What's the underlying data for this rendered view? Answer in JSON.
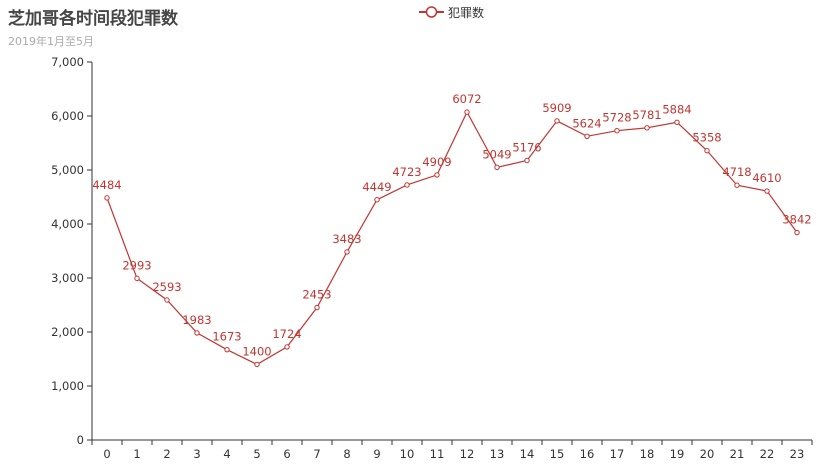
{
  "chart_data": {
    "type": "line",
    "title": "芝加哥各时间段犯罪数",
    "subtitle": "2019年1月至5月",
    "categories": [
      "0",
      "1",
      "2",
      "3",
      "4",
      "5",
      "6",
      "7",
      "8",
      "9",
      "10",
      "11",
      "12",
      "13",
      "14",
      "15",
      "16",
      "17",
      "18",
      "19",
      "20",
      "21",
      "22",
      "23"
    ],
    "series": [
      {
        "name": "犯罪数",
        "values": [
          4484,
          2993,
          2593,
          1983,
          1673,
          1400,
          1724,
          2453,
          3483,
          4449,
          4723,
          4909,
          6072,
          5049,
          5176,
          5909,
          5624,
          5728,
          5781,
          5884,
          5358,
          4718,
          4610,
          3842
        ]
      }
    ],
    "ylim": [
      0,
      7000
    ],
    "yticks": [
      "0",
      "1,000",
      "2,000",
      "3,000",
      "4,000",
      "5,000",
      "6,000",
      "7,000"
    ],
    "color": "#c23531",
    "legend_position": "top-center",
    "grid": false
  }
}
